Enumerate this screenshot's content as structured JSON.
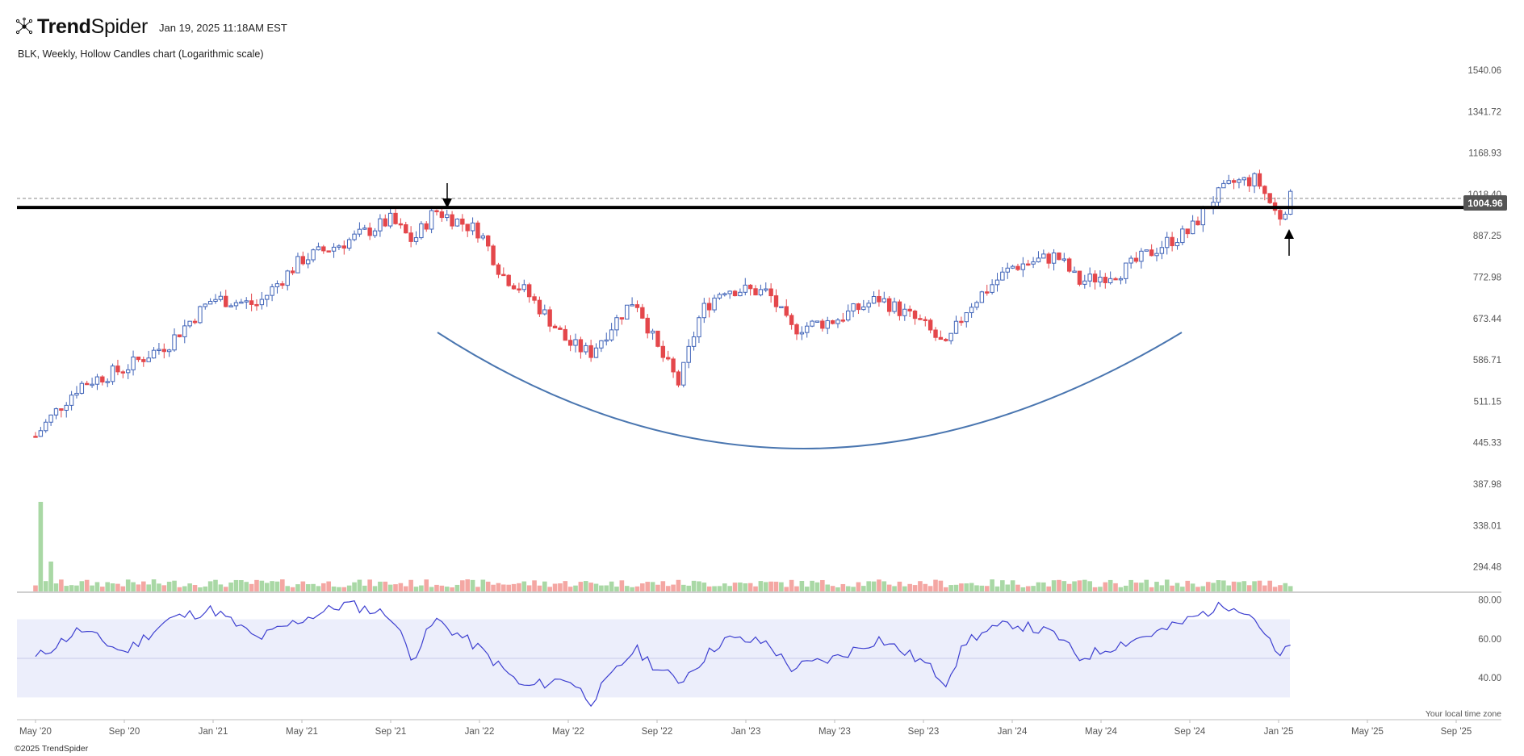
{
  "header": {
    "logo_bold": "Trend",
    "logo_regular": "Spider",
    "timestamp": "Jan 19, 2025 11:18AM EST"
  },
  "chart_title": "BLK, Weekly, Hollow Candles chart (Logarithmic scale)",
  "footer": {
    "copyright": "©2025 TrendSpider",
    "timezone_note": "Your local time zone"
  },
  "chart_data": [
    {
      "type": "candlestick",
      "title": "BLK, Weekly, Hollow Candles chart (Logarithmic scale)",
      "scale": "log",
      "y_ticks": [
        "1540.06",
        "1341.72",
        "1168.93",
        "1018.40",
        "887.25",
        "772.98",
        "673.44",
        "586.71",
        "511.15",
        "445.33",
        "387.98",
        "338.01",
        "294.48"
      ],
      "x_ticks": [
        "May '20",
        "Sep '20",
        "Jan '21",
        "May '21",
        "Sep '21",
        "Jan '22",
        "May '22",
        "Sep '22",
        "Jan '23",
        "May '23",
        "Sep '23",
        "Jan '24",
        "May '24",
        "Sep '24",
        "Jan '25",
        "May '25",
        "Sep '25"
      ],
      "last_price_label": "1004.96",
      "last_price": 1004.96,
      "resistance_level": 975,
      "price_path_anchors": [
        [
          "May '20",
          455
        ],
        [
          "Jul '20",
          540
        ],
        [
          "Sep '20",
          570
        ],
        [
          "Nov '20",
          620
        ],
        [
          "Jan '21",
          720
        ],
        [
          "Mar '21",
          705
        ],
        [
          "May '21",
          820
        ],
        [
          "Jul '21",
          870
        ],
        [
          "Sep '21",
          935
        ],
        [
          "Oct '21",
          870
        ],
        [
          "Nov '21",
          965
        ],
        [
          "Jan '22",
          900
        ],
        [
          "Feb '22",
          780
        ],
        [
          "Mar '22",
          740
        ],
        [
          "May '22",
          620
        ],
        [
          "Jun '22",
          600
        ],
        [
          "Aug '22",
          720
        ],
        [
          "Sep '22",
          610
        ],
        [
          "Oct '22",
          540
        ],
        [
          "Nov '22",
          690
        ],
        [
          "Dec '22",
          745
        ],
        [
          "Feb '23",
          735
        ],
        [
          "Mar '23",
          650
        ],
        [
          "May '23",
          670
        ],
        [
          "Jul '23",
          720
        ],
        [
          "Sep '23",
          660
        ],
        [
          "Oct '23",
          610
        ],
        [
          "Nov '23",
          700
        ],
        [
          "Jan '24",
          800
        ],
        [
          "Mar '24",
          830
        ],
        [
          "Apr '24",
          760
        ],
        [
          "Jun '24",
          790
        ],
        [
          "Aug '24",
          870
        ],
        [
          "Sep '24",
          900
        ],
        [
          "Oct '24",
          1000
        ],
        [
          "Nov '24",
          1060
        ],
        [
          "Dec '24",
          1070
        ],
        [
          "Jan '25",
          940
        ],
        [
          "Jan 17 '25",
          1004.96
        ]
      ],
      "annotations": [
        "down arrow at Nov '21 high",
        "up arrow at Jan '25 low",
        "rounded base curve Nov '21 – Aug '24"
      ]
    },
    {
      "type": "bar",
      "title": "",
      "series_name": "Volume",
      "colors": {
        "up": "#a9d8a5",
        "down": "#f4a7a3"
      },
      "spike": "May '20"
    },
    {
      "type": "line",
      "title": "",
      "y_ticks": [
        "80.00",
        "60.00",
        "40.00"
      ],
      "band": [
        30,
        70
      ],
      "midline": 50,
      "value_path_anchors": [
        [
          "May '20",
          50
        ],
        [
          "Jul '20",
          65
        ],
        [
          "Sep '20",
          53
        ],
        [
          "Nov '20",
          70
        ],
        [
          "Jan '21",
          75
        ],
        [
          "Mar '21",
          60
        ],
        [
          "May '21",
          70
        ],
        [
          "Jul '21",
          78
        ],
        [
          "Sep '21",
          72
        ],
        [
          "Oct '21",
          50
        ],
        [
          "Nov '21",
          70
        ],
        [
          "Jan '22",
          55
        ],
        [
          "Mar '22",
          35
        ],
        [
          "May '22",
          40
        ],
        [
          "Jun '22",
          28
        ],
        [
          "Aug '22",
          55
        ],
        [
          "Sep '22",
          45
        ],
        [
          "Oct '22",
          38
        ],
        [
          "Dec '22",
          60
        ],
        [
          "Feb '23",
          58
        ],
        [
          "Mar '23",
          45
        ],
        [
          "May '23",
          50
        ],
        [
          "Jul '23",
          60
        ],
        [
          "Sep '23",
          48
        ],
        [
          "Oct '23",
          38
        ],
        [
          "Nov '23",
          60
        ],
        [
          "Jan '24",
          68
        ],
        [
          "Mar '24",
          62
        ],
        [
          "Apr '24",
          50
        ],
        [
          "Jun '24",
          58
        ],
        [
          "Aug '24",
          65
        ],
        [
          "Oct '24",
          75
        ],
        [
          "Nov '24",
          78
        ],
        [
          "Dec '24",
          70
        ],
        [
          "Jan '25",
          50
        ],
        [
          "Jan 17 '25",
          56
        ]
      ]
    }
  ],
  "colors": {
    "up_candle": "#3f63b8",
    "down_candle": "#e4474b",
    "resistance_line": "#000000",
    "curve": "#4a76b0",
    "rsi_line": "#3d3fd0",
    "rsi_band": "#eceefb",
    "price_tag_bg": "#555555"
  }
}
